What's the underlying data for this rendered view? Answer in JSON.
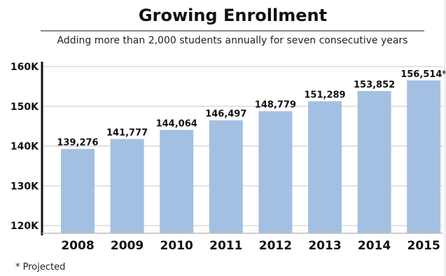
{
  "chart_data": {
    "type": "bar",
    "title": "Growing Enrollment",
    "subtitle": "Adding more than 2,000 students annually for seven consecutive years",
    "categories": [
      "2008",
      "2009",
      "2010",
      "2011",
      "2012",
      "2013",
      "2014",
      "2015"
    ],
    "values": [
      139276,
      141777,
      144064,
      146497,
      148779,
      151289,
      153852,
      156514
    ],
    "data_labels": [
      "139,276",
      "141,777",
      "144,064",
      "146,497",
      "148,779",
      "151,289",
      "153,852",
      "156,514*"
    ],
    "ylim": [
      118000,
      160000
    ],
    "yticks": [
      120000,
      130000,
      140000,
      150000,
      160000
    ],
    "ytick_labels": [
      "120K",
      "130K",
      "140K",
      "150K",
      "160K"
    ],
    "xlabel": "",
    "ylabel": "",
    "grid": true,
    "bar_color": "#a3c0e3",
    "grid_color": "#c8c8c8",
    "footnote": "* Projected"
  }
}
